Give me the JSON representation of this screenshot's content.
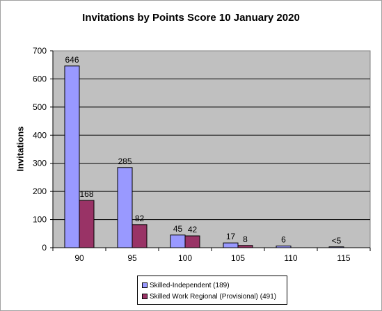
{
  "chart_data": {
    "type": "bar",
    "title": "Invitations by Points Score 10 January 2020",
    "xlabel": "",
    "ylabel": "Invitations",
    "categories": [
      "90",
      "95",
      "100",
      "105",
      "110",
      "115"
    ],
    "ylim": [
      0,
      700
    ],
    "yticks": [
      "0",
      "100",
      "200",
      "300",
      "400",
      "500",
      "600",
      "700"
    ],
    "grid": true,
    "legend_position": "bottom",
    "series": [
      {
        "name": "Skilled-Independent (189)",
        "color": "#9999ff",
        "values": [
          646,
          285,
          45,
          17,
          6,
          3
        ],
        "labels": [
          "646",
          "285",
          "45",
          "17",
          "6",
          "<5"
        ]
      },
      {
        "name": "Skilled Work Regional (Provisional) (491)",
        "color": "#993366",
        "values": [
          168,
          82,
          42,
          8,
          0,
          0
        ],
        "labels": [
          "168",
          "82",
          "42",
          "8",
          "",
          ""
        ]
      }
    ],
    "plot_background": "#c0c0c0"
  }
}
